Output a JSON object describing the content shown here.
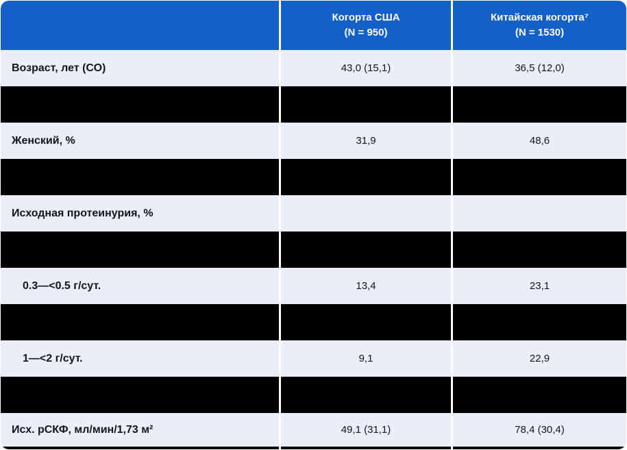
{
  "table": {
    "header": {
      "label_column": "",
      "columns": [
        {
          "title": "Когорта США",
          "n": "(N = 950)"
        },
        {
          "title": "Китайская когорта⁷",
          "n": "(N = 1530)"
        }
      ]
    },
    "rows": [
      {
        "type": "data",
        "indent": false,
        "label": "Возраст, лет (СО)",
        "values": [
          "43,0 (15,1)",
          "36,5 (12,0)"
        ]
      },
      {
        "type": "redacted"
      },
      {
        "type": "data",
        "indent": false,
        "label": "Женский, %",
        "values": [
          "31,9",
          "48,6"
        ]
      },
      {
        "type": "redacted"
      },
      {
        "type": "data",
        "indent": false,
        "label": "Исходная протеинурия, %",
        "values": [
          "",
          ""
        ]
      },
      {
        "type": "redacted"
      },
      {
        "type": "data",
        "indent": true,
        "label": "0.3—<0.5 г/сут.",
        "values": [
          "13,4",
          "23,1"
        ]
      },
      {
        "type": "redacted"
      },
      {
        "type": "data",
        "indent": true,
        "label": "1—<2 г/сут.",
        "values": [
          "9,1",
          "22,9"
        ]
      },
      {
        "type": "redacted"
      },
      {
        "type": "data",
        "indent": false,
        "label": "Исх. рСКФ, мл/мин/1,73 м²",
        "values": [
          "49,1 (31,1)",
          "78,4 (30,4)"
        ],
        "last": true
      },
      {
        "type": "redacted",
        "partial": true
      }
    ],
    "colors": {
      "header_bg": "#1360C8",
      "row_bg": "#E9EEF8",
      "redacted_bg": "#000000",
      "divider": "#FFFFFF",
      "header_text": "#FFFFFF",
      "body_text": "#12141F"
    }
  }
}
